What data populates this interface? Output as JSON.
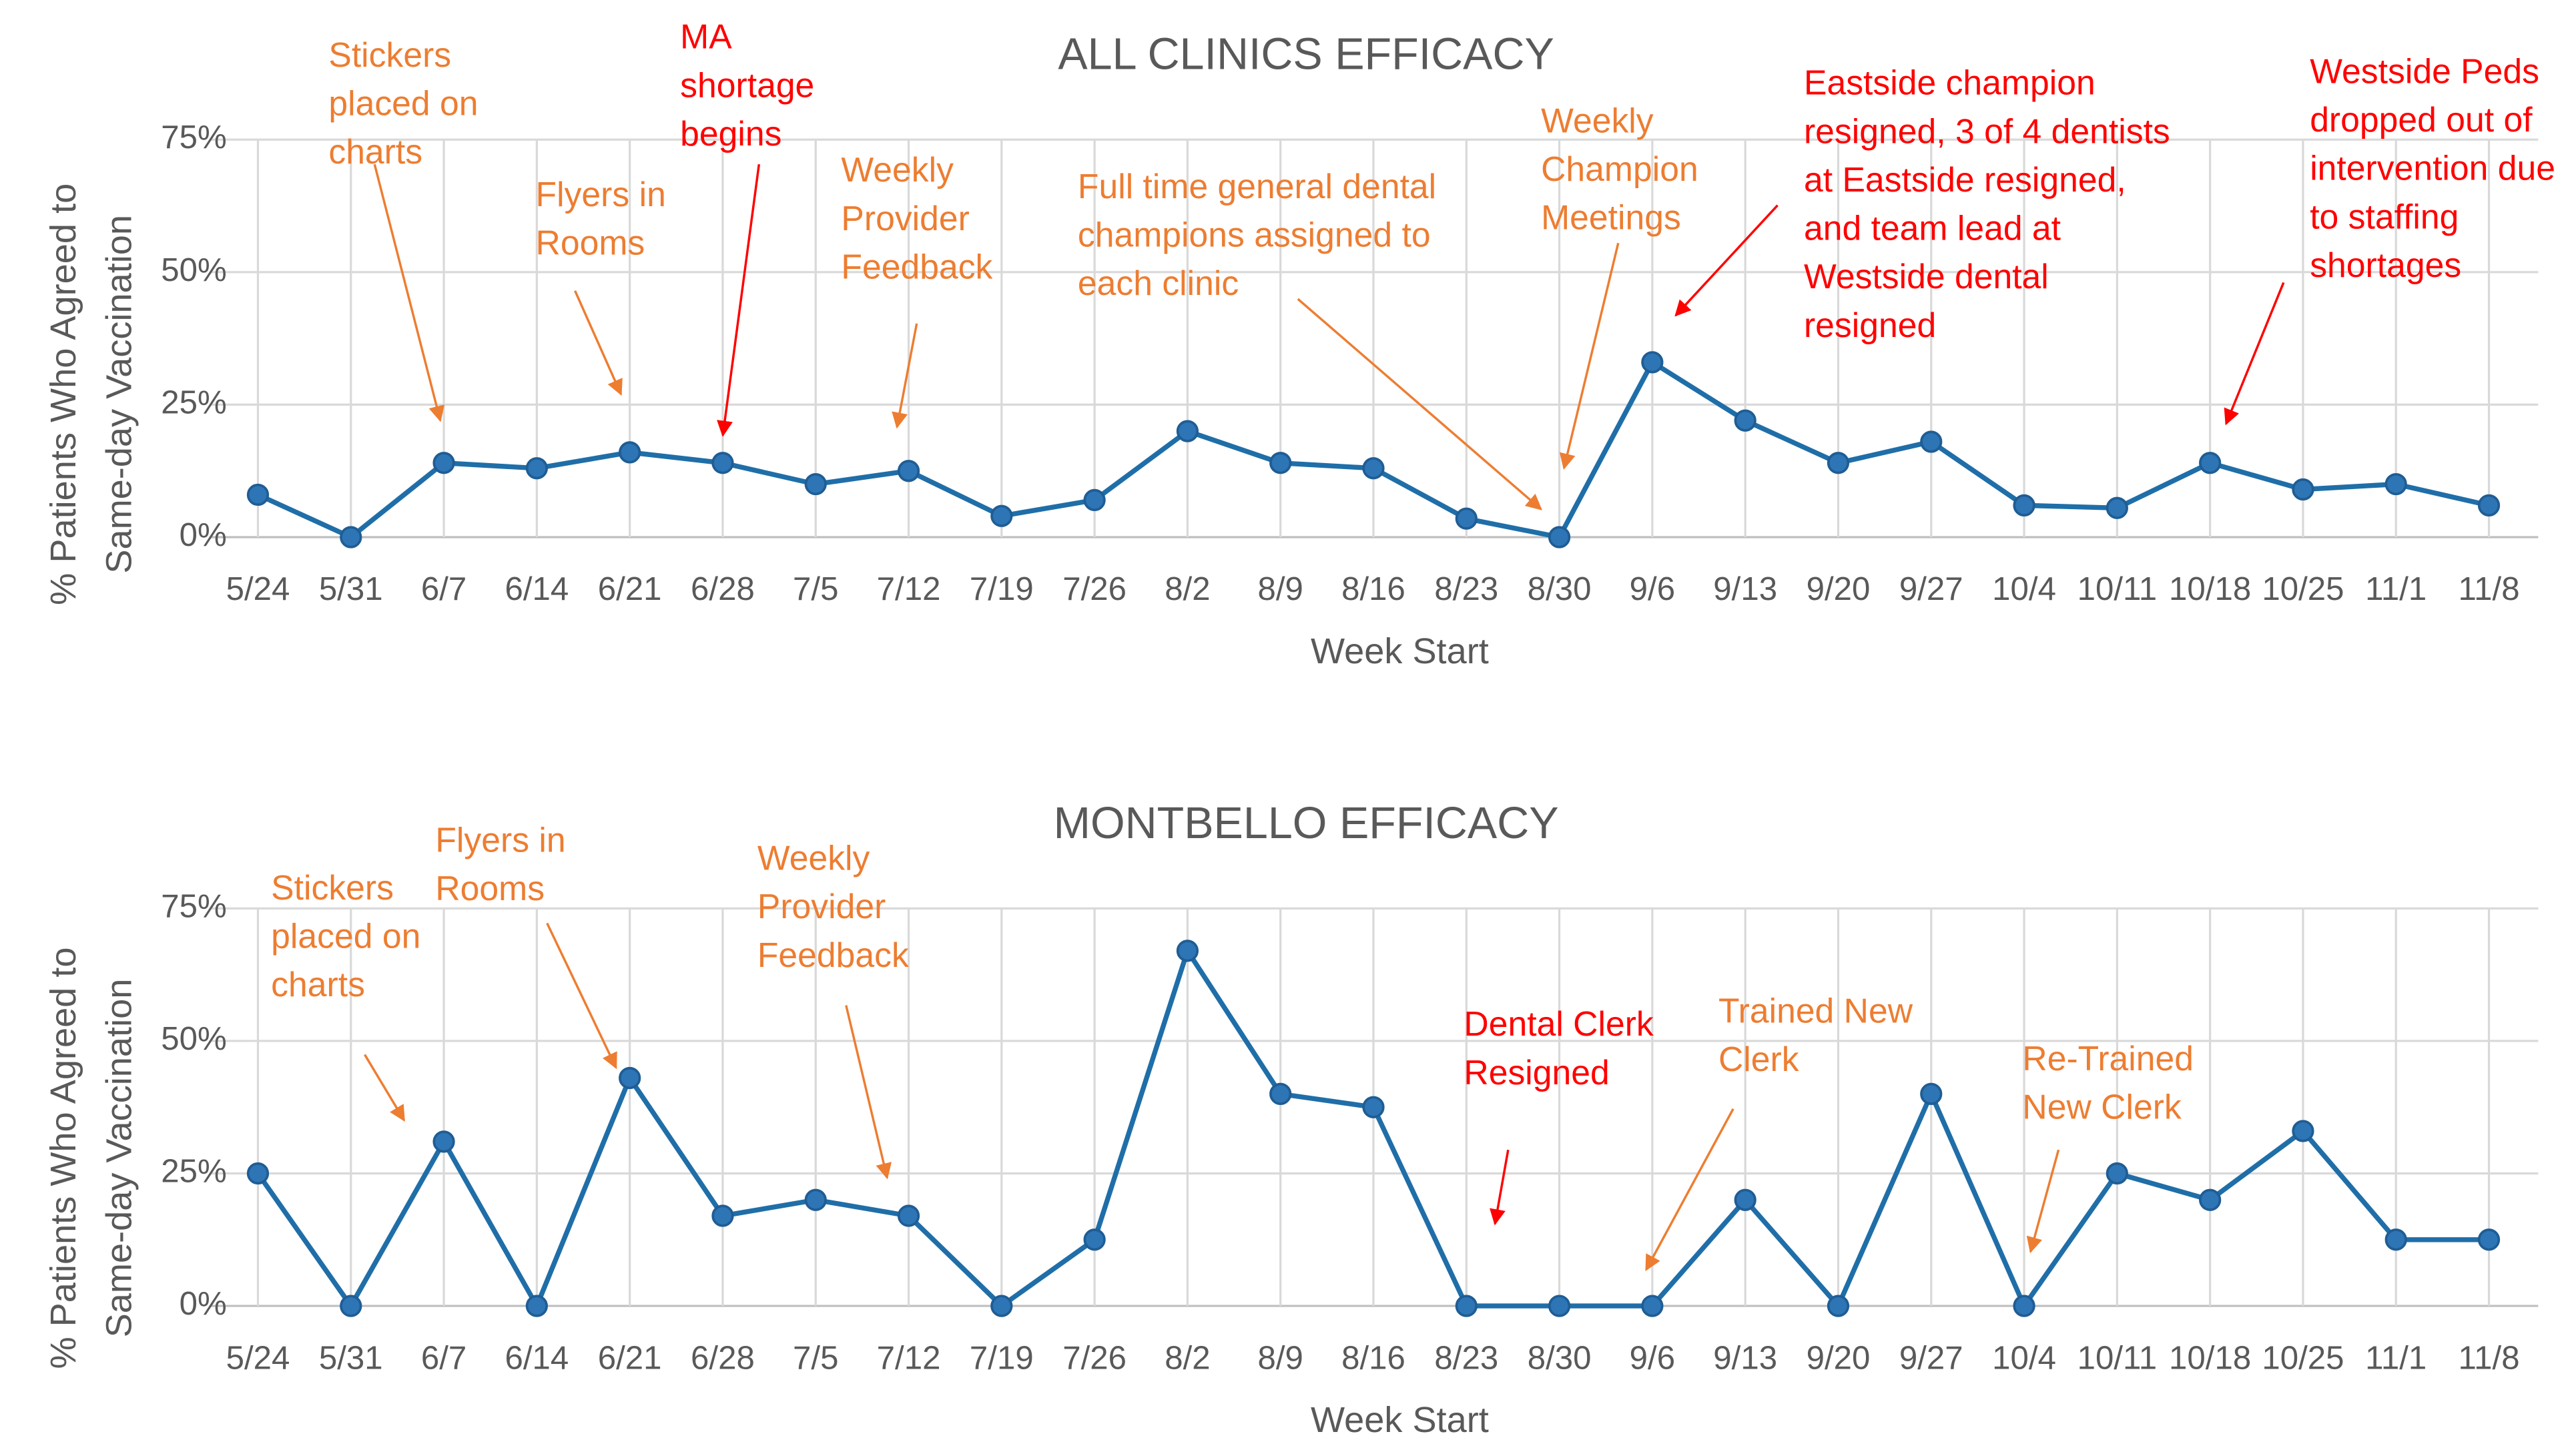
{
  "chart_data": [
    {
      "type": "line",
      "title": "ALL CLINICS EFFICACY",
      "categories": [
        "5/24",
        "5/31",
        "6/7",
        "6/14",
        "6/21",
        "6/28",
        "7/5",
        "7/12",
        "7/19",
        "7/26",
        "8/2",
        "8/9",
        "8/16",
        "8/23",
        "8/30",
        "9/6",
        "9/13",
        "9/20",
        "9/27",
        "10/4",
        "10/11",
        "10/18",
        "10/25",
        "11/1",
        "11/8"
      ],
      "values": [
        8,
        0,
        14,
        13,
        16,
        14,
        10,
        12.5,
        4,
        7,
        20,
        14,
        13,
        3.5,
        0,
        33,
        22,
        14,
        18,
        6,
        5.5,
        14,
        9,
        10,
        6
      ],
      "color": "#1f6ea8",
      "x_label": "Week Start",
      "y_label": [
        "% Patients Who Agreed to",
        "Same-day Vaccination"
      ],
      "ylim": [
        0,
        75
      ],
      "yticks": [
        {
          "value": 0,
          "label": "0%"
        },
        {
          "value": 25,
          "label": "25%"
        },
        {
          "value": 50,
          "label": "50%"
        },
        {
          "value": 75,
          "label": "75%"
        }
      ],
      "grid": true,
      "annotations": [
        {
          "lines": [
            "Stickers",
            "placed on",
            "charts"
          ],
          "color": "#ed7d31"
        },
        {
          "lines": [
            "Flyers in",
            "Rooms"
          ],
          "color": "#ed7d31"
        },
        {
          "lines": [
            "MA",
            "shortage",
            "begins"
          ],
          "color": "#ff0000"
        },
        {
          "lines": [
            "Weekly",
            "Provider",
            "Feedback"
          ],
          "color": "#ed7d31"
        },
        {
          "lines": [
            "Full time general dental",
            "champions assigned to",
            "each clinic"
          ],
          "color": "#ed7d31"
        },
        {
          "lines": [
            "Weekly",
            "Champion",
            "Meetings"
          ],
          "color": "#ed7d31"
        },
        {
          "lines": [
            "Eastside champion",
            "resigned, 3 of 4 dentists",
            "at Eastside resigned,",
            "and team lead at",
            "Westside dental",
            "resigned"
          ],
          "color": "#ff0000"
        },
        {
          "lines": [
            "Westside Peds",
            "dropped out of",
            "intervention due",
            "to staffing",
            "shortages"
          ],
          "color": "#ff0000"
        }
      ]
    },
    {
      "type": "line",
      "title": "MONTBELLO EFFICACY",
      "categories": [
        "5/24",
        "5/31",
        "6/7",
        "6/14",
        "6/21",
        "6/28",
        "7/5",
        "7/12",
        "7/19",
        "7/26",
        "8/2",
        "8/9",
        "8/16",
        "8/23",
        "8/30",
        "9/6",
        "9/13",
        "9/20",
        "9/27",
        "10/4",
        "10/11",
        "10/18",
        "10/25",
        "11/1",
        "11/8"
      ],
      "values": [
        25,
        0,
        31,
        0,
        43,
        17,
        20,
        17,
        0,
        12.5,
        67,
        40,
        37.5,
        0,
        0,
        0,
        20,
        0,
        40,
        0,
        25,
        20,
        33,
        12.5,
        12.5
      ],
      "color": "#1f6ea8",
      "x_label": "Week Start",
      "y_label": [
        "% Patients Who Agreed to",
        "Same-day Vaccination"
      ],
      "ylim": [
        0,
        75
      ],
      "yticks": [
        {
          "value": 0,
          "label": "0%"
        },
        {
          "value": 25,
          "label": "25%"
        },
        {
          "value": 50,
          "label": "50%"
        },
        {
          "value": 75,
          "label": "75%"
        }
      ],
      "grid": true,
      "annotations": [
        {
          "lines": [
            "Stickers",
            "placed on",
            "charts"
          ],
          "color": "#ed7d31"
        },
        {
          "lines": [
            "Flyers in",
            "Rooms"
          ],
          "color": "#ed7d31"
        },
        {
          "lines": [
            "Weekly",
            "Provider",
            "Feedback"
          ],
          "color": "#ed7d31"
        },
        {
          "lines": [
            "Dental Clerk",
            "Resigned"
          ],
          "color": "#ff0000"
        },
        {
          "lines": [
            "Trained New",
            "Clerk"
          ],
          "color": "#ed7d31"
        },
        {
          "lines": [
            "Re-Trained",
            "New Clerk"
          ],
          "color": "#ed7d31"
        }
      ]
    }
  ]
}
